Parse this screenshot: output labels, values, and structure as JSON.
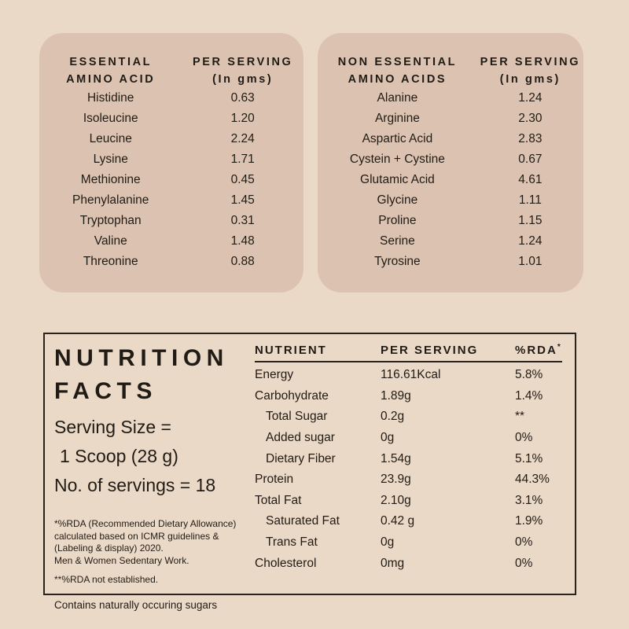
{
  "colors": {
    "page_bg": "#ebd9c7",
    "card_bg": "#dcc3b1",
    "text": "#211b15",
    "panel_border": "#2b241e"
  },
  "essential_card": {
    "header": {
      "col1_line1": "ESSENTIAL",
      "col1_line2": "AMINO ACID",
      "col2_line1": "PER SERVING",
      "col2_line2": "(In gms)"
    },
    "rows": [
      {
        "name": "Histidine",
        "value": "0.63"
      },
      {
        "name": "Isoleucine",
        "value": "1.20"
      },
      {
        "name": "Leucine",
        "value": "2.24"
      },
      {
        "name": "Lysine",
        "value": "1.71"
      },
      {
        "name": "Methionine",
        "value": "0.45"
      },
      {
        "name": "Phenylalanine",
        "value": "1.45"
      },
      {
        "name": "Tryptophan",
        "value": "0.31"
      },
      {
        "name": "Valine",
        "value": "1.48"
      },
      {
        "name": "Threonine",
        "value": "0.88"
      }
    ]
  },
  "non_essential_card": {
    "header": {
      "col1_line1": "NON ESSENTIAL",
      "col1_line2": "AMINO ACIDS",
      "col2_line1": "PER SERVING",
      "col2_line2": "(In gms)"
    },
    "rows": [
      {
        "name": "Alanine",
        "value": "1.24"
      },
      {
        "name": "Arginine",
        "value": "2.30"
      },
      {
        "name": "Aspartic Acid",
        "value": "2.83"
      },
      {
        "name": "Cystein + Cystine",
        "value": "0.67"
      },
      {
        "name": "Glutamic Acid",
        "value": "4.61"
      },
      {
        "name": "Glycine",
        "value": "1.11"
      },
      {
        "name": "Proline",
        "value": "1.15"
      },
      {
        "name": "Serine",
        "value": "1.24"
      },
      {
        "name": "Tyrosine",
        "value": "1.01"
      }
    ]
  },
  "nutrition_facts": {
    "title_line1": "NUTRITION",
    "title_line2": "FACTS",
    "serving_size_label": "Serving Size =",
    "serving_size_value": "1 Scoop (28 g)",
    "servings_count": "No. of servings = 18",
    "footnote_rda_lines": [
      "*%RDA (Recommended Dietary Allowance)",
      "calculated based on ICMR guidelines &",
      "(Labeling & display) 2020.",
      "Men & Women Sedentary Work."
    ],
    "footnote_not_established": "**%RDA not established.",
    "contains_note": "Contains naturally occuring sugars",
    "table": {
      "headers": {
        "nutrient": "NUTRIENT",
        "per_serving": "PER SERVING",
        "rda": "%RDA",
        "rda_sup": "*"
      },
      "rows": [
        {
          "nutrient": "Energy",
          "per_serving": "116.61Kcal",
          "rda": "5.8%",
          "indent": false
        },
        {
          "nutrient": "Carbohydrate",
          "per_serving": "1.89g",
          "rda": "1.4%",
          "indent": false
        },
        {
          "nutrient": "Total Sugar",
          "per_serving": "0.2g",
          "rda": "**",
          "indent": true
        },
        {
          "nutrient": "Added sugar",
          "per_serving": "0g",
          "rda": "0%",
          "indent": true
        },
        {
          "nutrient": "Dietary Fiber",
          "per_serving": "1.54g",
          "rda": "5.1%",
          "indent": true
        },
        {
          "nutrient": "Protein",
          "per_serving": "23.9g",
          "rda": "44.3%",
          "indent": false
        },
        {
          "nutrient": "Total Fat",
          "per_serving": "2.10g",
          "rda": "3.1%",
          "indent": false
        },
        {
          "nutrient": "Saturated Fat",
          "per_serving": "0.42 g",
          "rda": "1.9%",
          "indent": true
        },
        {
          "nutrient": "Trans Fat",
          "per_serving": "0g",
          "rda": "0%",
          "indent": true
        },
        {
          "nutrient": "Cholesterol",
          "per_serving": "0mg",
          "rda": "0%",
          "indent": false
        }
      ]
    }
  }
}
